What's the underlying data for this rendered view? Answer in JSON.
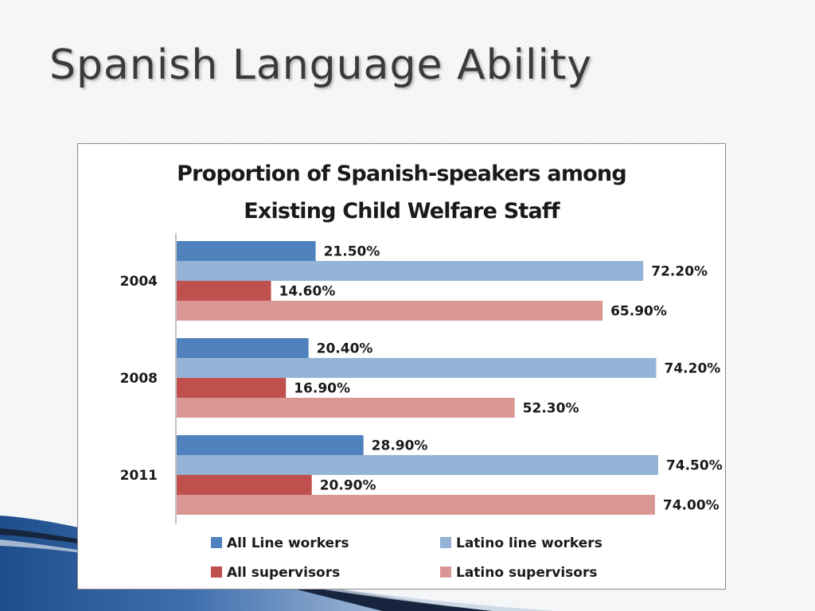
{
  "slide": {
    "title": "Spanish Language Ability"
  },
  "chart_data": {
    "type": "bar",
    "orientation": "horizontal",
    "title_lines": [
      "Proportion of Spanish-speakers among",
      "Existing Child Welfare Staff"
    ],
    "categories": [
      "2004",
      "2008",
      "2011"
    ],
    "series": [
      {
        "name": "All Line workers",
        "color": "#4f81bd",
        "values": [
          21.5,
          20.4,
          28.9
        ],
        "labels": [
          "21.50%",
          "20.40%",
          "28.90%"
        ]
      },
      {
        "name": "Latino line workers",
        "color": "#95b3d7",
        "values": [
          72.2,
          74.2,
          74.5
        ],
        "labels": [
          "72.20%",
          "74.20%",
          "74.50%"
        ]
      },
      {
        "name": "All supervisors",
        "color": "#c0504d",
        "values": [
          14.6,
          16.9,
          20.9
        ],
        "labels": [
          "14.60%",
          "16.90%",
          "20.90%"
        ]
      },
      {
        "name": "Latino supervisors",
        "color": "#d99694",
        "values": [
          65.9,
          52.3,
          74.0
        ],
        "labels": [
          "65.90%",
          "52.30%",
          "74.00%"
        ]
      }
    ],
    "xlim": [
      0,
      80
    ],
    "grid": false,
    "legend_position": "bottom"
  }
}
